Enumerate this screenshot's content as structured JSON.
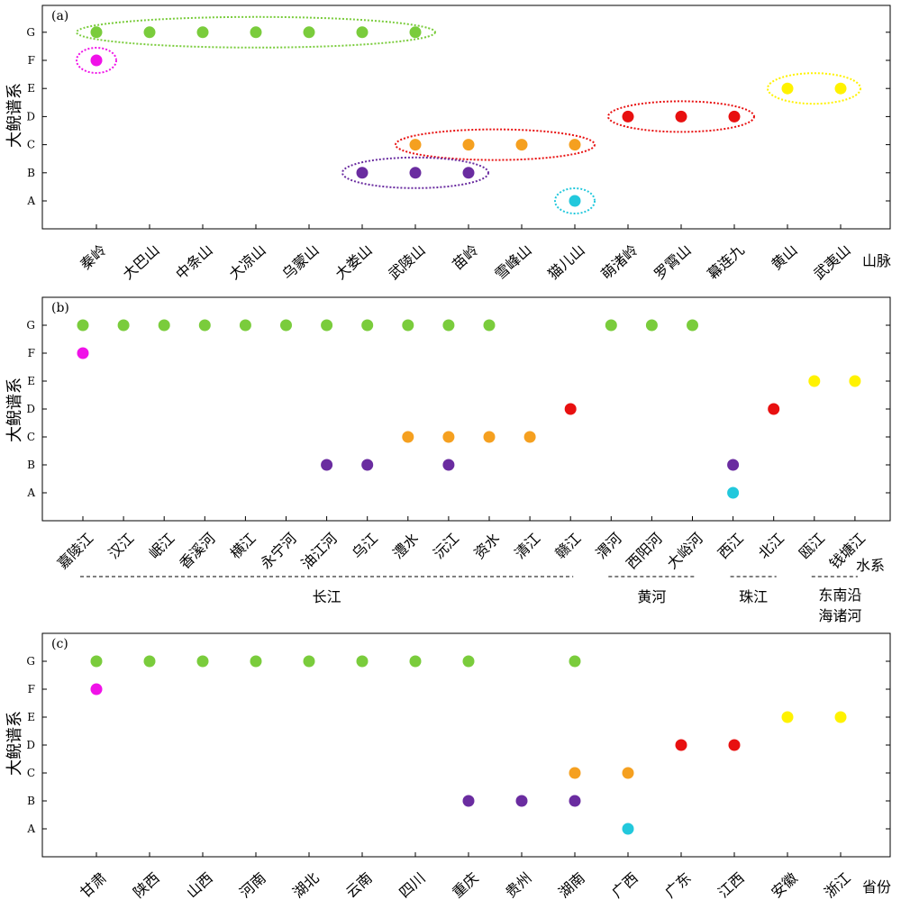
{
  "chart_data": [
    {
      "type": "scatter",
      "panel_label": "(a)",
      "categories": [
        "秦岭",
        "大巴山",
        "中条山",
        "大凉山",
        "乌蒙山",
        "大娄山",
        "武陵山",
        "苗岭",
        "雪峰山",
        "猫儿山",
        "萌渚岭",
        "罗霄山",
        "幕连九",
        "黄山",
        "武夷山"
      ],
      "yticks": [
        "A",
        "B",
        "C",
        "D",
        "E",
        "F",
        "G"
      ],
      "ylabel": "大鲵谱系",
      "xaxis_title": "山脉",
      "colors": {
        "A": "#22c8dc",
        "B": "#6a2ca0",
        "C": "#f5a020",
        "D": "#e81010",
        "E": "#fff200",
        "F": "#f012e8",
        "G": "#7acc3c"
      },
      "points": [
        {
          "x": "秦岭",
          "y": "G"
        },
        {
          "x": "大巴山",
          "y": "G"
        },
        {
          "x": "中条山",
          "y": "G"
        },
        {
          "x": "大凉山",
          "y": "G"
        },
        {
          "x": "乌蒙山",
          "y": "G"
        },
        {
          "x": "大娄山",
          "y": "G"
        },
        {
          "x": "武陵山",
          "y": "G"
        },
        {
          "x": "秦岭",
          "y": "F"
        },
        {
          "x": "黄山",
          "y": "E"
        },
        {
          "x": "武夷山",
          "y": "E"
        },
        {
          "x": "萌渚岭",
          "y": "D"
        },
        {
          "x": "罗霄山",
          "y": "D"
        },
        {
          "x": "幕连九",
          "y": "D"
        },
        {
          "x": "武陵山",
          "y": "C"
        },
        {
          "x": "苗岭",
          "y": "C"
        },
        {
          "x": "雪峰山",
          "y": "C"
        },
        {
          "x": "猫儿山",
          "y": "C"
        },
        {
          "x": "大娄山",
          "y": "B"
        },
        {
          "x": "武陵山",
          "y": "B"
        },
        {
          "x": "苗岭",
          "y": "B"
        },
        {
          "x": "猫儿山",
          "y": "A"
        }
      ],
      "groups_circled": [
        {
          "y": "G",
          "from": "秦岭",
          "to": "武陵山",
          "color": "#7acc3c"
        },
        {
          "y": "F",
          "from": "秦岭",
          "to": "秦岭",
          "color": "#f012e8"
        },
        {
          "y": "E",
          "from": "黄山",
          "to": "武夷山",
          "color": "#fff200"
        },
        {
          "y": "D",
          "from": "萌渚岭",
          "to": "幕连九",
          "color": "#e81010"
        },
        {
          "y": "C",
          "from": "武陵山",
          "to": "猫儿山",
          "color": "#e81010"
        },
        {
          "y": "B",
          "from": "大娄山",
          "to": "苗岭",
          "color": "#6a2ca0"
        },
        {
          "y": "A",
          "from": "猫儿山",
          "to": "猫儿山",
          "color": "#22c8dc"
        }
      ]
    },
    {
      "type": "scatter",
      "panel_label": "(b)",
      "categories": [
        "嘉陵江",
        "汉江",
        "岷江",
        "香溪河",
        "横江",
        "永宁河",
        "油江河",
        "乌江",
        "澧水",
        "沅江",
        "资水",
        "清江",
        "赣江",
        "渭河",
        "西阳河",
        "大峪河",
        "西江",
        "北江",
        "瓯江",
        "钱塘江"
      ],
      "yticks": [
        "A",
        "B",
        "C",
        "D",
        "E",
        "F",
        "G"
      ],
      "ylabel": "大鲵谱系",
      "xaxis_title": "水系",
      "colors": {
        "A": "#22c8dc",
        "B": "#6a2ca0",
        "C": "#f5a020",
        "D": "#e81010",
        "E": "#fff200",
        "F": "#f012e8",
        "G": "#7acc3c"
      },
      "points": [
        {
          "x": "嘉陵江",
          "y": "G"
        },
        {
          "x": "汉江",
          "y": "G"
        },
        {
          "x": "岷江",
          "y": "G"
        },
        {
          "x": "香溪河",
          "y": "G"
        },
        {
          "x": "横江",
          "y": "G"
        },
        {
          "x": "永宁河",
          "y": "G"
        },
        {
          "x": "油江河",
          "y": "G"
        },
        {
          "x": "乌江",
          "y": "G"
        },
        {
          "x": "澧水",
          "y": "G"
        },
        {
          "x": "沅江",
          "y": "G"
        },
        {
          "x": "资水",
          "y": "G"
        },
        {
          "x": "渭河",
          "y": "G"
        },
        {
          "x": "西阳河",
          "y": "G"
        },
        {
          "x": "大峪河",
          "y": "G"
        },
        {
          "x": "嘉陵江",
          "y": "F"
        },
        {
          "x": "瓯江",
          "y": "E"
        },
        {
          "x": "钱塘江",
          "y": "E"
        },
        {
          "x": "赣江",
          "y": "D"
        },
        {
          "x": "北江",
          "y": "D"
        },
        {
          "x": "澧水",
          "y": "C"
        },
        {
          "x": "沅江",
          "y": "C"
        },
        {
          "x": "资水",
          "y": "C"
        },
        {
          "x": "清江",
          "y": "C"
        },
        {
          "x": "油江河",
          "y": "B"
        },
        {
          "x": "乌江",
          "y": "B"
        },
        {
          "x": "沅江",
          "y": "B"
        },
        {
          "x": "西江",
          "y": "B"
        },
        {
          "x": "西江",
          "y": "A"
        }
      ],
      "basins": [
        {
          "name": "长江",
          "from": "嘉陵江",
          "to": "赣江"
        },
        {
          "name": "黄河",
          "from": "渭河",
          "to": "大峪河"
        },
        {
          "name": "珠江",
          "from": "西江",
          "to": "北江"
        },
        {
          "name_lines": [
            "东南沿",
            "海诸河"
          ],
          "from": "瓯江",
          "to": "钱塘江"
        }
      ]
    },
    {
      "type": "scatter",
      "panel_label": "(c)",
      "categories": [
        "甘肃",
        "陕西",
        "山西",
        "河南",
        "湖北",
        "云南",
        "四川",
        "重庆",
        "贵州",
        "湖南",
        "广西",
        "广东",
        "江西",
        "安徽",
        "浙江"
      ],
      "yticks": [
        "A",
        "B",
        "C",
        "D",
        "E",
        "F",
        "G"
      ],
      "ylabel": "大鲵谱系",
      "xaxis_title": "省份",
      "colors": {
        "A": "#22c8dc",
        "B": "#6a2ca0",
        "C": "#f5a020",
        "D": "#e81010",
        "E": "#fff200",
        "F": "#f012e8",
        "G": "#7acc3c"
      },
      "points": [
        {
          "x": "甘肃",
          "y": "G"
        },
        {
          "x": "陕西",
          "y": "G"
        },
        {
          "x": "山西",
          "y": "G"
        },
        {
          "x": "河南",
          "y": "G"
        },
        {
          "x": "湖北",
          "y": "G"
        },
        {
          "x": "云南",
          "y": "G"
        },
        {
          "x": "四川",
          "y": "G"
        },
        {
          "x": "重庆",
          "y": "G"
        },
        {
          "x": "湖南",
          "y": "G"
        },
        {
          "x": "甘肃",
          "y": "F"
        },
        {
          "x": "安徽",
          "y": "E"
        },
        {
          "x": "浙江",
          "y": "E"
        },
        {
          "x": "广东",
          "y": "D"
        },
        {
          "x": "江西",
          "y": "D"
        },
        {
          "x": "湖南",
          "y": "C"
        },
        {
          "x": "广西",
          "y": "C"
        },
        {
          "x": "重庆",
          "y": "B"
        },
        {
          "x": "贵州",
          "y": "B"
        },
        {
          "x": "湖南",
          "y": "B"
        },
        {
          "x": "广西",
          "y": "A"
        }
      ]
    }
  ]
}
